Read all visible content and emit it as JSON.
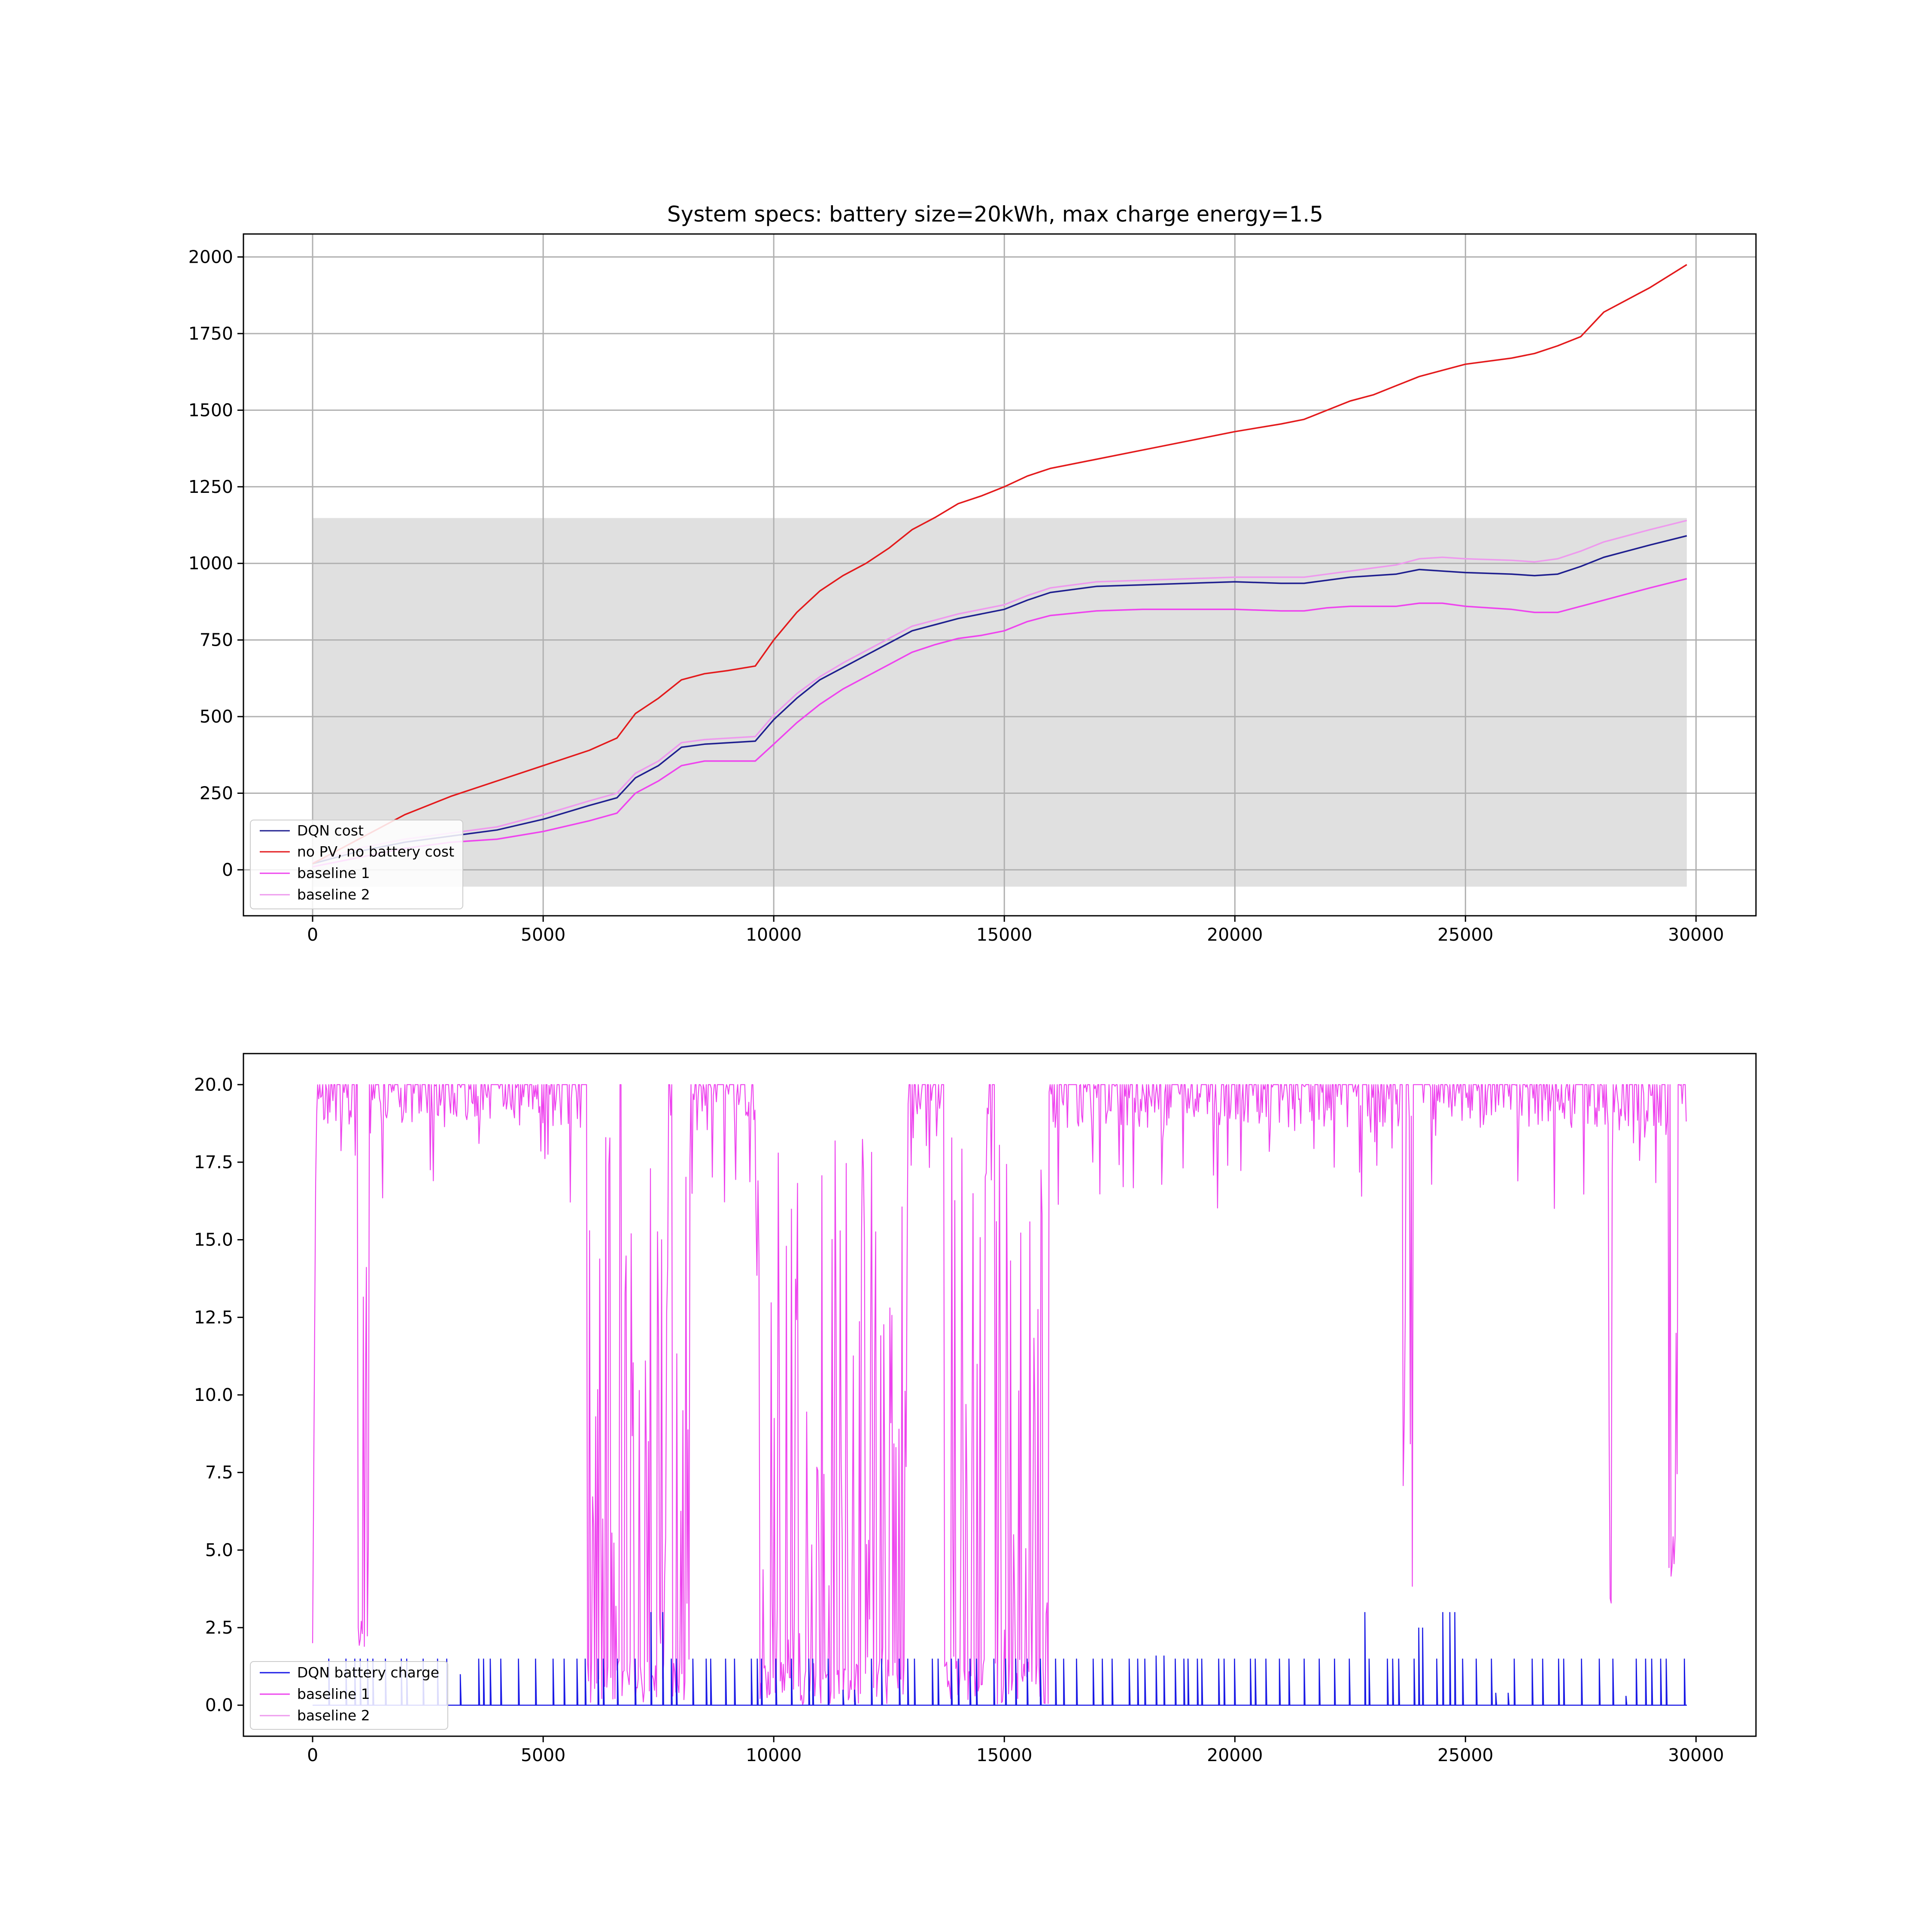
{
  "colors": {
    "dqn_cost": "#1f1f8f",
    "no_pv": "#e31a1c",
    "baseline1": "#ee44ee",
    "baseline2": "#ee99ee",
    "dqn_charge": "#1a1ae6",
    "band": "#e0e0e0",
    "grid": "#b0b0b0"
  },
  "chart_data": [
    {
      "type": "line",
      "title": "System specs: battery size=20kWh, max charge energy=1.5",
      "xlim": [
        -1500,
        31300
      ],
      "ylim": [
        -150,
        2075
      ],
      "xticks": [
        0,
        5000,
        10000,
        15000,
        20000,
        25000,
        30000
      ],
      "yticks": [
        0,
        250,
        500,
        750,
        1000,
        1250,
        1500,
        1750,
        2000
      ],
      "grid": true,
      "legend_position": "lower-left",
      "shaded_band": {
        "x": [
          0,
          29800
        ],
        "y": [
          -55,
          1148
        ]
      },
      "series": [
        {
          "name": "DQN cost",
          "x": [
            0,
            1000,
            2000,
            3000,
            4000,
            5000,
            6000,
            6600,
            7000,
            7500,
            8000,
            8500,
            9600,
            10000,
            10500,
            11000,
            11500,
            12000,
            12500,
            13000,
            13500,
            14000,
            14500,
            15000,
            15500,
            16000,
            17000,
            18000,
            19000,
            20000,
            21000,
            21500,
            22000,
            22500,
            23000,
            23500,
            24000,
            24500,
            25000,
            26000,
            26500,
            27000,
            27500,
            28000,
            28500,
            29000,
            29800
          ],
          "values": [
            20,
            60,
            90,
            110,
            130,
            165,
            210,
            235,
            300,
            340,
            400,
            410,
            420,
            490,
            560,
            620,
            660,
            700,
            740,
            780,
            800,
            820,
            835,
            850,
            880,
            905,
            925,
            930,
            935,
            940,
            935,
            935,
            945,
            955,
            960,
            965,
            980,
            975,
            970,
            965,
            960,
            965,
            990,
            1020,
            1040,
            1060,
            1090
          ]
        },
        {
          "name": "no PV, no battery cost",
          "x": [
            0,
            1000,
            2000,
            3000,
            4000,
            5000,
            6000,
            6600,
            7000,
            7500,
            8000,
            8500,
            9000,
            9600,
            10000,
            10500,
            11000,
            11500,
            12000,
            12500,
            13000,
            13500,
            14000,
            14500,
            15000,
            15500,
            16000,
            17000,
            18000,
            19000,
            20000,
            21000,
            21500,
            22000,
            22500,
            23000,
            23500,
            24000,
            24500,
            25000,
            26000,
            26500,
            27000,
            27500,
            28000,
            28500,
            29000,
            29800
          ],
          "values": [
            20,
            100,
            180,
            240,
            290,
            340,
            390,
            430,
            510,
            560,
            620,
            640,
            650,
            665,
            750,
            840,
            910,
            960,
            1000,
            1050,
            1110,
            1150,
            1195,
            1220,
            1250,
            1285,
            1310,
            1340,
            1370,
            1400,
            1430,
            1455,
            1470,
            1500,
            1530,
            1550,
            1580,
            1610,
            1630,
            1650,
            1670,
            1685,
            1710,
            1740,
            1820,
            1860,
            1900,
            1975
          ]
        },
        {
          "name": "baseline 1",
          "x": [
            0,
            1000,
            2000,
            3000,
            4000,
            5000,
            6000,
            6600,
            7000,
            7500,
            8000,
            8500,
            9600,
            10000,
            10500,
            11000,
            11500,
            12000,
            12500,
            13000,
            13500,
            14000,
            14500,
            15000,
            15500,
            16000,
            17000,
            18000,
            19000,
            20000,
            21000,
            21500,
            22000,
            22500,
            23000,
            23500,
            24000,
            24500,
            25000,
            26000,
            26500,
            27000,
            27500,
            28000,
            28500,
            29000,
            29800
          ],
          "values": [
            10,
            40,
            70,
            90,
            100,
            125,
            160,
            185,
            250,
            290,
            340,
            355,
            355,
            410,
            480,
            540,
            590,
            630,
            670,
            710,
            735,
            755,
            765,
            780,
            810,
            830,
            845,
            850,
            850,
            850,
            845,
            845,
            855,
            860,
            860,
            860,
            870,
            870,
            860,
            850,
            840,
            840,
            860,
            880,
            900,
            920,
            950
          ]
        },
        {
          "name": "baseline 2",
          "x": [
            0,
            1000,
            2000,
            3000,
            4000,
            5000,
            6000,
            6600,
            7000,
            7500,
            8000,
            8500,
            9600,
            10000,
            10500,
            11000,
            11500,
            12000,
            12500,
            13000,
            13500,
            14000,
            14500,
            15000,
            15500,
            16000,
            17000,
            18000,
            19000,
            20000,
            21000,
            21500,
            22000,
            22500,
            23000,
            23500,
            24000,
            24500,
            25000,
            26000,
            26500,
            27000,
            27500,
            28000,
            28500,
            29000,
            29800
          ],
          "values": [
            25,
            70,
            100,
            120,
            140,
            180,
            225,
            250,
            315,
            355,
            415,
            425,
            435,
            505,
            575,
            630,
            675,
            715,
            755,
            795,
            815,
            835,
            850,
            865,
            895,
            920,
            940,
            945,
            950,
            955,
            955,
            955,
            965,
            975,
            985,
            995,
            1015,
            1020,
            1015,
            1010,
            1005,
            1015,
            1040,
            1070,
            1090,
            1110,
            1140
          ]
        }
      ]
    },
    {
      "type": "line",
      "title": "",
      "xlim": [
        -1500,
        31300
      ],
      "ylim": [
        -1,
        21
      ],
      "xticks": [
        0,
        5000,
        10000,
        15000,
        20000,
        25000,
        30000
      ],
      "yticks": [
        0.0,
        2.5,
        5.0,
        7.5,
        10.0,
        12.5,
        15.0,
        17.5,
        20.0
      ],
      "grid": false,
      "legend_position": "lower-left",
      "series": [
        {
          "name": "DQN battery charge",
          "base": 0,
          "max": 1.5,
          "peaks": [
            [
              3300,
              1.0
            ],
            [
              7400,
              3.0
            ],
            [
              18400,
              1.6
            ],
            [
              22700,
              3.0
            ],
            [
              24100,
              2.5
            ],
            [
              24600,
              3.0
            ],
            [
              11600,
              0.5
            ],
            [
              25800,
              0.4
            ],
            [
              27500,
              1.5
            ],
            [
              28500,
              0.3
            ]
          ]
        },
        {
          "name": "baseline 1",
          "base": 20,
          "gaps": [
            [
              980,
              1230,
              1.5
            ],
            [
              5950,
              6650,
              0.0
            ],
            [
              6700,
              7700,
              0.0
            ],
            [
              7800,
              8200,
              0.0
            ],
            [
              9600,
              12900,
              0.0
            ],
            [
              13700,
              14600,
              0.0
            ],
            [
              14800,
              15950,
              0.0
            ],
            [
              23650,
              23700,
              6.0
            ],
            [
              23800,
              23850,
              3.0
            ],
            [
              28100,
              28200,
              2.0
            ],
            [
              29400,
              29600,
              4.0
            ]
          ]
        },
        {
          "name": "baseline 2",
          "base": 0.0
        }
      ]
    }
  ]
}
